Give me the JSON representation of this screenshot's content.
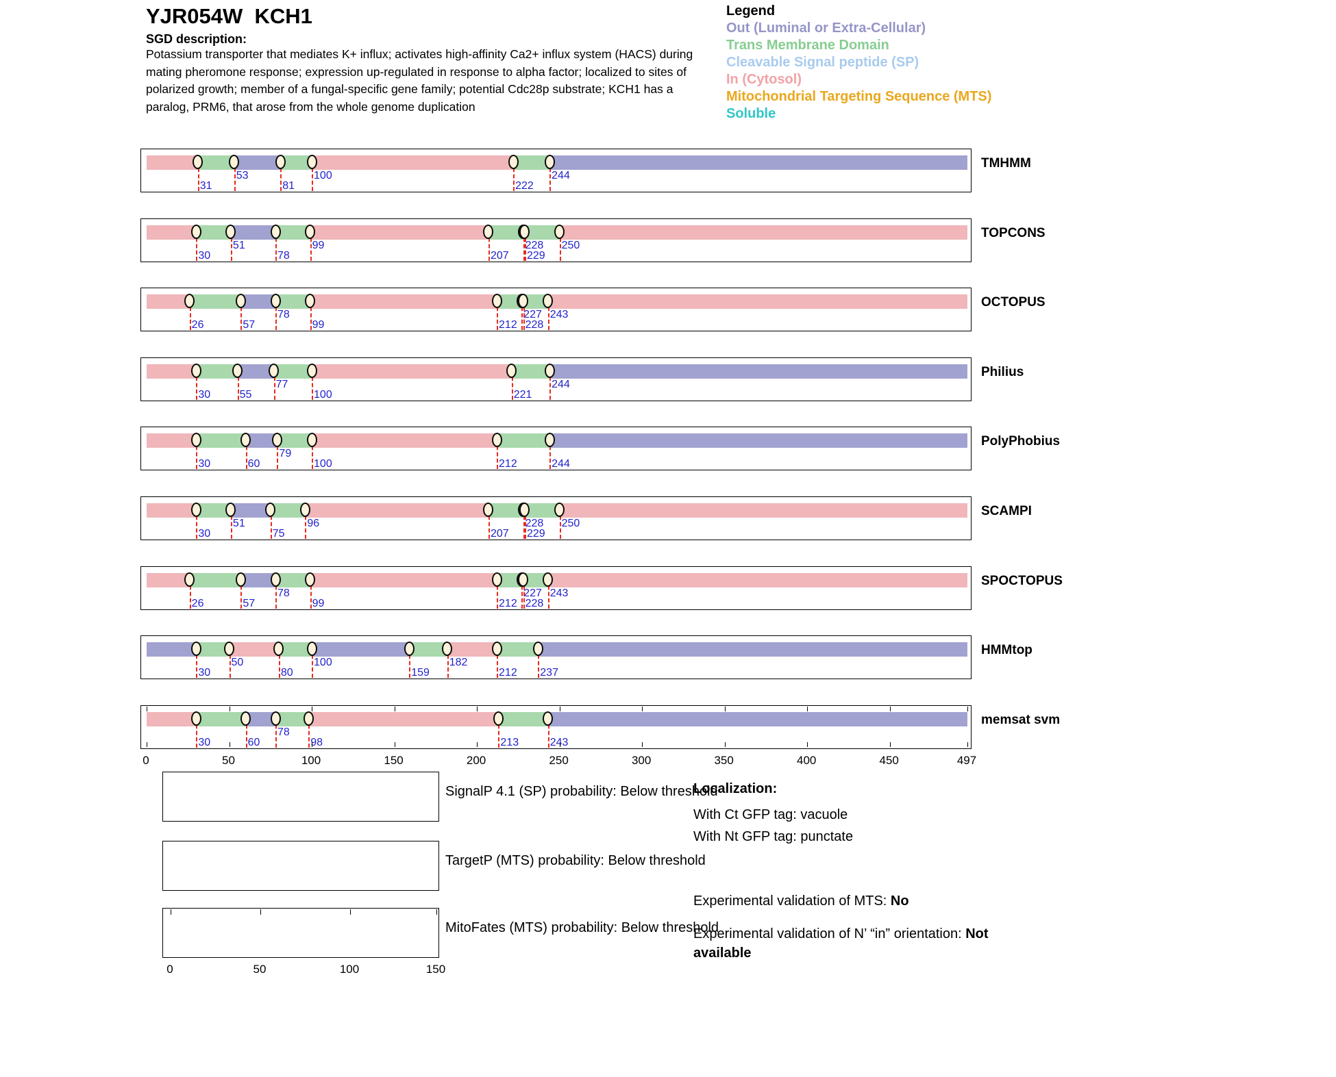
{
  "header": {
    "title": "YJR054W  KCH1",
    "sgd_label": "SGD description:",
    "description": "Potassium transporter that mediates K+ influx; activates high-affinity Ca2+ influx system (HACS) during mating pheromone response; expression up-regulated in response to alpha factor; localized to sites of polarized growth; member of a fungal-specific gene family; potential Cdc28p substrate; KCH1 has a paralog, PRM6, that arose from the whole genome duplication"
  },
  "legend": {
    "title": "Legend",
    "items": [
      {
        "key": "out",
        "label": "Out (Luminal or Extra-Cellular)",
        "color": "#9695c8"
      },
      {
        "key": "tm",
        "label": "Trans Membrane Domain",
        "color": "#87cd92"
      },
      {
        "key": "sp",
        "label": "Cleavable Signal peptide (SP)",
        "color": "#a9cbee"
      },
      {
        "key": "in",
        "label": "In (Cytosol)",
        "color": "#f2a3a6"
      },
      {
        "key": "mts",
        "label": "Mitochondrial Targeting Sequence (MTS)",
        "color": "#eaa71d"
      },
      {
        "key": "soluble",
        "label": "Soluble",
        "color": "#30c6c8"
      }
    ]
  },
  "chart_data": {
    "type": "topology-tracks",
    "x_axis": {
      "min": 0,
      "max": 497,
      "ticks": [
        0,
        50,
        100,
        150,
        200,
        250,
        300,
        350,
        400,
        450,
        497
      ]
    },
    "region_colors": {
      "in": "#f0b6ba",
      "tm": "#a8d8ac",
      "out": "#a2a2d0"
    },
    "boundary_number_color": "#2222cc",
    "boundary_line_color": "#e8291c",
    "tracks": [
      {
        "name": "TMHMM",
        "regions": [
          {
            "start": 0,
            "end": 31,
            "type": "in"
          },
          {
            "start": 31,
            "end": 53,
            "type": "tm"
          },
          {
            "start": 53,
            "end": 81,
            "type": "out"
          },
          {
            "start": 81,
            "end": 100,
            "type": "tm"
          },
          {
            "start": 100,
            "end": 222,
            "type": "in"
          },
          {
            "start": 222,
            "end": 244,
            "type": "tm"
          },
          {
            "start": 244,
            "end": 497,
            "type": "out"
          }
        ],
        "boundaries": [
          {
            "pos": 31,
            "level": "low"
          },
          {
            "pos": 53,
            "level": "high"
          },
          {
            "pos": 81,
            "level": "low"
          },
          {
            "pos": 100,
            "level": "high"
          },
          {
            "pos": 222,
            "level": "low"
          },
          {
            "pos": 244,
            "level": "high"
          }
        ]
      },
      {
        "name": "TOPCONS",
        "regions": [
          {
            "start": 0,
            "end": 30,
            "type": "in"
          },
          {
            "start": 30,
            "end": 51,
            "type": "tm"
          },
          {
            "start": 51,
            "end": 78,
            "type": "out"
          },
          {
            "start": 78,
            "end": 99,
            "type": "tm"
          },
          {
            "start": 99,
            "end": 207,
            "type": "in"
          },
          {
            "start": 207,
            "end": 228,
            "type": "tm"
          },
          {
            "start": 228,
            "end": 229,
            "type": "out"
          },
          {
            "start": 229,
            "end": 250,
            "type": "tm"
          },
          {
            "start": 250,
            "end": 497,
            "type": "in"
          }
        ],
        "boundaries": [
          {
            "pos": 30,
            "level": "low"
          },
          {
            "pos": 51,
            "level": "high"
          },
          {
            "pos": 78,
            "level": "low"
          },
          {
            "pos": 99,
            "level": "high"
          },
          {
            "pos": 207,
            "level": "low"
          },
          {
            "pos": 228,
            "level": "high"
          },
          {
            "pos": 229,
            "level": "low"
          },
          {
            "pos": 250,
            "level": "high"
          }
        ]
      },
      {
        "name": "OCTOPUS",
        "regions": [
          {
            "start": 0,
            "end": 26,
            "type": "in"
          },
          {
            "start": 26,
            "end": 57,
            "type": "tm"
          },
          {
            "start": 57,
            "end": 78,
            "type": "out"
          },
          {
            "start": 78,
            "end": 99,
            "type": "tm"
          },
          {
            "start": 99,
            "end": 212,
            "type": "in"
          },
          {
            "start": 212,
            "end": 227,
            "type": "tm"
          },
          {
            "start": 227,
            "end": 228,
            "type": "out"
          },
          {
            "start": 228,
            "end": 243,
            "type": "tm"
          },
          {
            "start": 243,
            "end": 497,
            "type": "in"
          }
        ],
        "boundaries": [
          {
            "pos": 26,
            "level": "low"
          },
          {
            "pos": 57,
            "level": "low"
          },
          {
            "pos": 78,
            "level": "high"
          },
          {
            "pos": 99,
            "level": "low"
          },
          {
            "pos": 212,
            "level": "low"
          },
          {
            "pos": 227,
            "level": "high"
          },
          {
            "pos": 228,
            "level": "low"
          },
          {
            "pos": 243,
            "level": "high"
          }
        ]
      },
      {
        "name": "Philius",
        "regions": [
          {
            "start": 0,
            "end": 30,
            "type": "in"
          },
          {
            "start": 30,
            "end": 55,
            "type": "tm"
          },
          {
            "start": 55,
            "end": 77,
            "type": "out"
          },
          {
            "start": 77,
            "end": 100,
            "type": "tm"
          },
          {
            "start": 100,
            "end": 221,
            "type": "in"
          },
          {
            "start": 221,
            "end": 244,
            "type": "tm"
          },
          {
            "start": 244,
            "end": 497,
            "type": "out"
          }
        ],
        "boundaries": [
          {
            "pos": 30,
            "level": "low"
          },
          {
            "pos": 55,
            "level": "low"
          },
          {
            "pos": 77,
            "level": "high"
          },
          {
            "pos": 100,
            "level": "low"
          },
          {
            "pos": 221,
            "level": "low"
          },
          {
            "pos": 244,
            "level": "high"
          }
        ]
      },
      {
        "name": "PolyPhobius",
        "regions": [
          {
            "start": 0,
            "end": 30,
            "type": "in"
          },
          {
            "start": 30,
            "end": 60,
            "type": "tm"
          },
          {
            "start": 60,
            "end": 79,
            "type": "out"
          },
          {
            "start": 79,
            "end": 100,
            "type": "tm"
          },
          {
            "start": 100,
            "end": 212,
            "type": "in"
          },
          {
            "start": 212,
            "end": 244,
            "type": "tm"
          },
          {
            "start": 244,
            "end": 497,
            "type": "out"
          }
        ],
        "boundaries": [
          {
            "pos": 30,
            "level": "low"
          },
          {
            "pos": 60,
            "level": "low"
          },
          {
            "pos": 79,
            "level": "high"
          },
          {
            "pos": 100,
            "level": "low"
          },
          {
            "pos": 212,
            "level": "low"
          },
          {
            "pos": 244,
            "level": "low"
          }
        ]
      },
      {
        "name": "SCAMPI",
        "regions": [
          {
            "start": 0,
            "end": 30,
            "type": "in"
          },
          {
            "start": 30,
            "end": 51,
            "type": "tm"
          },
          {
            "start": 51,
            "end": 75,
            "type": "out"
          },
          {
            "start": 75,
            "end": 96,
            "type": "tm"
          },
          {
            "start": 96,
            "end": 207,
            "type": "in"
          },
          {
            "start": 207,
            "end": 228,
            "type": "tm"
          },
          {
            "start": 228,
            "end": 229,
            "type": "out"
          },
          {
            "start": 229,
            "end": 250,
            "type": "tm"
          },
          {
            "start": 250,
            "end": 497,
            "type": "in"
          }
        ],
        "boundaries": [
          {
            "pos": 30,
            "level": "low"
          },
          {
            "pos": 51,
            "level": "high"
          },
          {
            "pos": 75,
            "level": "low"
          },
          {
            "pos": 96,
            "level": "high"
          },
          {
            "pos": 207,
            "level": "low"
          },
          {
            "pos": 228,
            "level": "high"
          },
          {
            "pos": 229,
            "level": "low"
          },
          {
            "pos": 250,
            "level": "high"
          }
        ]
      },
      {
        "name": "SPOCTOPUS",
        "regions": [
          {
            "start": 0,
            "end": 26,
            "type": "in"
          },
          {
            "start": 26,
            "end": 57,
            "type": "tm"
          },
          {
            "start": 57,
            "end": 78,
            "type": "out"
          },
          {
            "start": 78,
            "end": 99,
            "type": "tm"
          },
          {
            "start": 99,
            "end": 212,
            "type": "in"
          },
          {
            "start": 212,
            "end": 227,
            "type": "tm"
          },
          {
            "start": 227,
            "end": 228,
            "type": "out"
          },
          {
            "start": 228,
            "end": 243,
            "type": "tm"
          },
          {
            "start": 243,
            "end": 497,
            "type": "in"
          }
        ],
        "boundaries": [
          {
            "pos": 26,
            "level": "low"
          },
          {
            "pos": 57,
            "level": "low"
          },
          {
            "pos": 78,
            "level": "high"
          },
          {
            "pos": 99,
            "level": "low"
          },
          {
            "pos": 212,
            "level": "low"
          },
          {
            "pos": 227,
            "level": "high"
          },
          {
            "pos": 228,
            "level": "low"
          },
          {
            "pos": 243,
            "level": "high"
          }
        ]
      },
      {
        "name": "HMMtop",
        "regions": [
          {
            "start": 0,
            "end": 30,
            "type": "out"
          },
          {
            "start": 30,
            "end": 50,
            "type": "tm"
          },
          {
            "start": 50,
            "end": 80,
            "type": "in"
          },
          {
            "start": 80,
            "end": 100,
            "type": "tm"
          },
          {
            "start": 100,
            "end": 159,
            "type": "out"
          },
          {
            "start": 159,
            "end": 182,
            "type": "tm"
          },
          {
            "start": 182,
            "end": 212,
            "type": "in"
          },
          {
            "start": 212,
            "end": 237,
            "type": "tm"
          },
          {
            "start": 237,
            "end": 497,
            "type": "out"
          }
        ],
        "boundaries": [
          {
            "pos": 30,
            "level": "low"
          },
          {
            "pos": 50,
            "level": "high"
          },
          {
            "pos": 80,
            "level": "low"
          },
          {
            "pos": 100,
            "level": "high"
          },
          {
            "pos": 159,
            "level": "low"
          },
          {
            "pos": 182,
            "level": "high"
          },
          {
            "pos": 212,
            "level": "low"
          },
          {
            "pos": 237,
            "level": "low"
          }
        ]
      },
      {
        "name": "memsat svm",
        "axis_ticks": true,
        "regions": [
          {
            "start": 0,
            "end": 30,
            "type": "in"
          },
          {
            "start": 30,
            "end": 60,
            "type": "tm"
          },
          {
            "start": 60,
            "end": 78,
            "type": "out"
          },
          {
            "start": 78,
            "end": 98,
            "type": "tm"
          },
          {
            "start": 98,
            "end": 213,
            "type": "in"
          },
          {
            "start": 213,
            "end": 243,
            "type": "tm"
          },
          {
            "start": 243,
            "end": 497,
            "type": "out"
          }
        ],
        "boundaries": [
          {
            "pos": 30,
            "level": "low"
          },
          {
            "pos": 60,
            "level": "low"
          },
          {
            "pos": 78,
            "level": "high"
          },
          {
            "pos": 98,
            "level": "low"
          },
          {
            "pos": 213,
            "level": "low"
          },
          {
            "pos": 243,
            "level": "low"
          }
        ]
      }
    ]
  },
  "probability_plots": [
    {
      "label": "SignalP 4.1 (SP) probability: Below threshold"
    },
    {
      "label": "TargetP (MTS) probability: Below threshold"
    },
    {
      "label": "MitoFates (MTS) probability: Below threshold",
      "x_ticks": [
        0,
        50,
        100,
        150
      ]
    }
  ],
  "localization": {
    "title": "Localization:",
    "ct_line": "With Ct GFP tag: vacuole",
    "nt_line": "With Nt GFP tag: punctate",
    "mts_label": "Experimental validation of MTS: ",
    "mts_value": "No",
    "orientation_label": "Experimental validation of N’ “in” orientation: ",
    "orientation_value": "Not available"
  }
}
